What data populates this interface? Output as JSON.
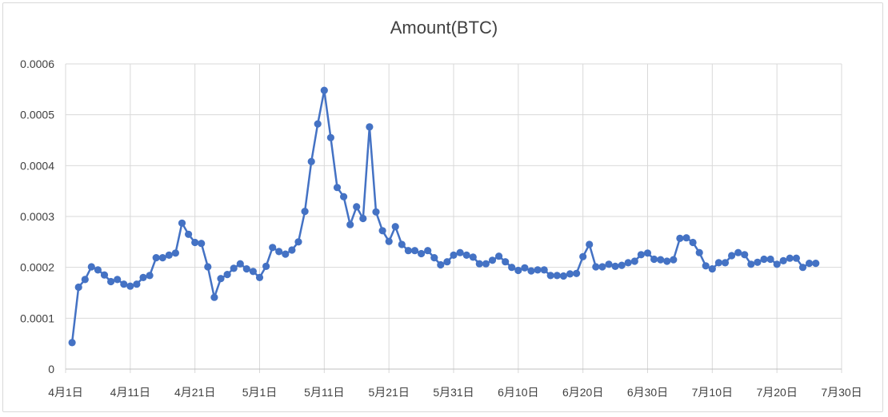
{
  "chart_data": {
    "type": "line",
    "title": "Amount(BTC)",
    "xlabel": "",
    "ylabel": "",
    "ylim": [
      0,
      0.0006
    ],
    "y_ticks": [
      "0",
      "0.0001",
      "0.0002",
      "0.0003",
      "0.0004",
      "0.0005",
      "0.0006"
    ],
    "x_ticks": [
      "4月1日",
      "4月11日",
      "4月21日",
      "5月1日",
      "5月11日",
      "5月21日",
      "5月31日",
      "6月10日",
      "6月20日",
      "6月30日",
      "7月10日",
      "7月20日",
      "7月30日"
    ],
    "x_start_tick": "4月1日",
    "grid": true,
    "legend": "none",
    "series_color": "#4472C4",
    "series": [
      {
        "x": [
          "4月2日",
          "4月3日",
          "4月4日",
          "4月5日",
          "4月6日",
          "4月7日",
          "4月8日",
          "4月9日",
          "4月10日",
          "4月11日",
          "4月12日",
          "4月13日",
          "4月14日",
          "4月15日",
          "4月16日",
          "4月17日",
          "4月18日",
          "4月19日",
          "4月20日",
          "4月21日",
          "4月22日",
          "4月23日",
          "4月24日",
          "4月25日",
          "4月26日",
          "4月27日",
          "4月28日",
          "4月29日",
          "4月30日",
          "5月1日",
          "5月2日",
          "5月3日",
          "5月4日",
          "5月5日",
          "5月6日",
          "5月7日",
          "5月8日",
          "5月9日",
          "5月10日",
          "5月11日",
          "5月12日",
          "5月13日",
          "5月14日",
          "5月15日",
          "5月16日",
          "5月17日",
          "5月18日",
          "5月19日",
          "5月20日",
          "5月21日",
          "5月22日",
          "5月23日",
          "5月24日",
          "5月25日",
          "5月26日",
          "5月27日",
          "5月28日",
          "5月29日",
          "5月30日",
          "5月31日",
          "6月1日",
          "6月2日",
          "6月3日",
          "6月4日",
          "6月5日",
          "6月6日",
          "6月7日",
          "6月8日",
          "6月9日",
          "6月10日",
          "6月11日",
          "6月12日",
          "6月13日",
          "6月14日",
          "6月15日",
          "6月16日",
          "6月17日",
          "6月18日",
          "6月19日",
          "6月20日",
          "6月21日",
          "6月22日",
          "6月23日",
          "6月24日",
          "6月25日",
          "6月26日",
          "6月27日",
          "6月28日",
          "6月29日",
          "6月30日",
          "7月1日",
          "7月2日",
          "7月3日",
          "7月4日",
          "7月5日",
          "7月6日",
          "7月7日",
          "7月8日",
          "7月9日",
          "7月10日",
          "7月11日",
          "7月12日",
          "7月13日",
          "7月14日",
          "7月15日",
          "7月16日",
          "7月17日",
          "7月18日",
          "7月19日",
          "7月20日",
          "7月21日",
          "7月22日",
          "7月23日",
          "7月24日",
          "7月25日",
          "7月26日"
        ],
        "values": [
          5.2e-05,
          0.000161,
          0.000176,
          0.000201,
          0.000195,
          0.000185,
          0.000172,
          0.000176,
          0.000167,
          0.000163,
          0.000167,
          0.00018,
          0.000184,
          0.000219,
          0.000219,
          0.000224,
          0.000228,
          0.000287,
          0.000265,
          0.000249,
          0.000247,
          0.000201,
          0.000141,
          0.000178,
          0.000186,
          0.000198,
          0.000207,
          0.000197,
          0.000192,
          0.00018,
          0.000202,
          0.000239,
          0.000231,
          0.000226,
          0.000234,
          0.00025,
          0.00031,
          0.000408,
          0.000482,
          0.000548,
          0.000455,
          0.000357,
          0.000339,
          0.000284,
          0.000319,
          0.000296,
          0.000476,
          0.000309,
          0.000272,
          0.000251,
          0.00028,
          0.000245,
          0.000233,
          0.000233,
          0.000227,
          0.000233,
          0.000219,
          0.000205,
          0.000211,
          0.000224,
          0.000229,
          0.000224,
          0.00022,
          0.000207,
          0.000207,
          0.000214,
          0.000222,
          0.000211,
          0.0002,
          0.000194,
          0.000199,
          0.000193,
          0.000195,
          0.000195,
          0.000184,
          0.000184,
          0.000183,
          0.000187,
          0.000188,
          0.000221,
          0.000245,
          0.000201,
          0.000201,
          0.000206,
          0.000202,
          0.000204,
          0.000209,
          0.000212,
          0.000225,
          0.000228,
          0.000216,
          0.000215,
          0.000212,
          0.000215,
          0.000257,
          0.000258,
          0.000249,
          0.000229,
          0.000203,
          0.000197,
          0.000209,
          0.000209,
          0.000223,
          0.000229,
          0.000225,
          0.000206,
          0.00021,
          0.000216,
          0.000216,
          0.000206,
          0.000213,
          0.000218,
          0.000218,
          0.0002,
          0.000208,
          0.000208
        ]
      }
    ]
  }
}
